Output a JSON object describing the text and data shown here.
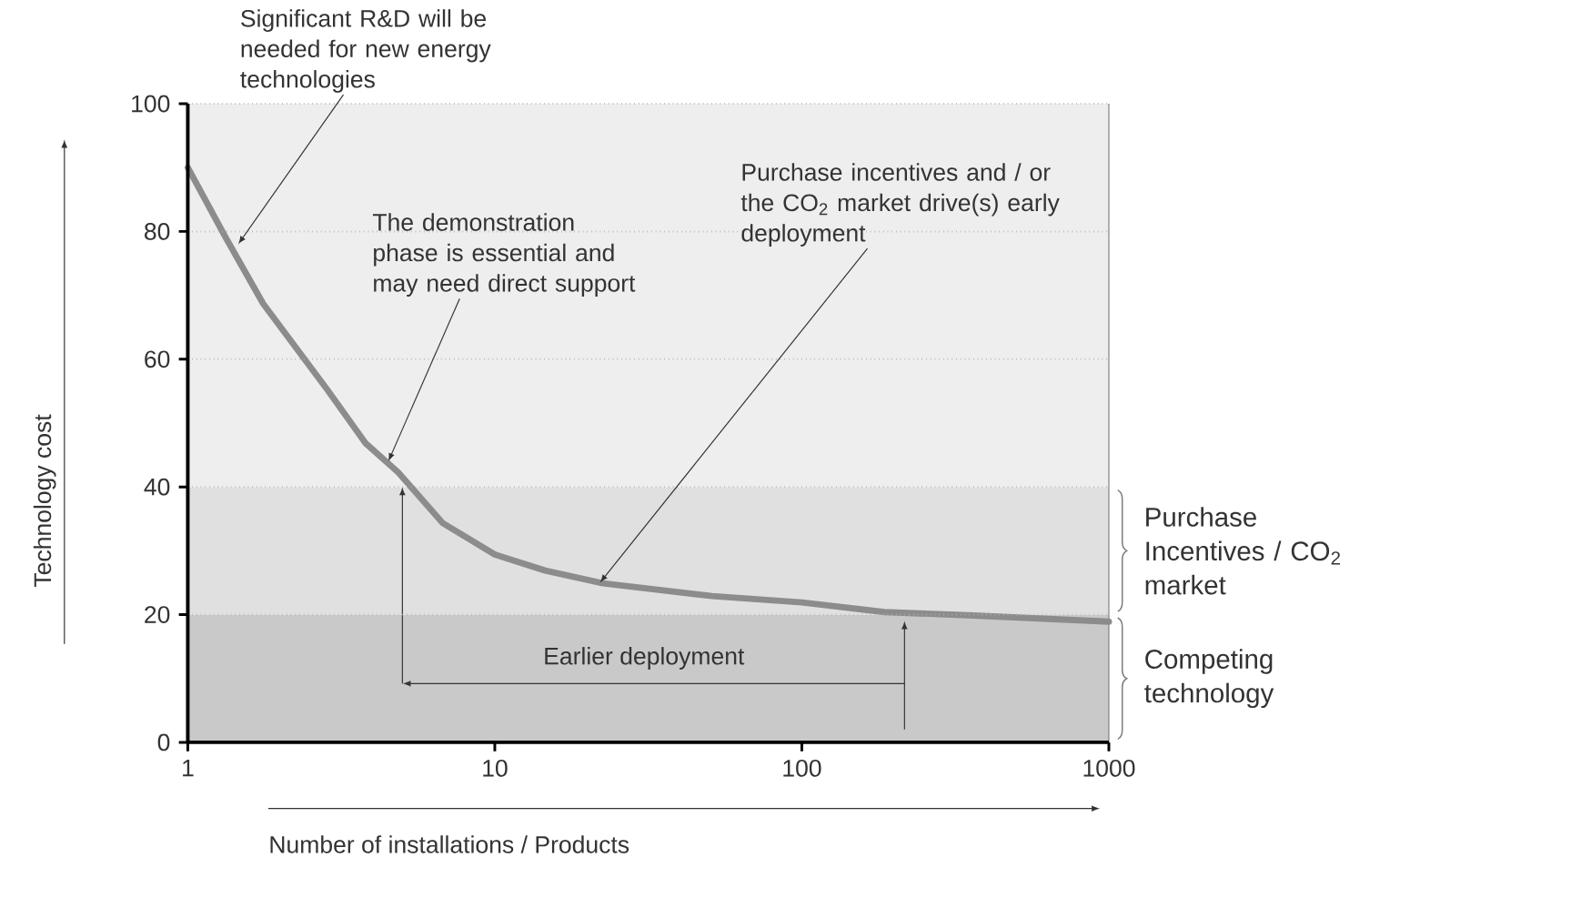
{
  "chart_data": {
    "type": "line",
    "xlabel": "Number of installations / Products",
    "ylabel": "Technology cost",
    "log": "x",
    "xlim": [
      1,
      1000
    ],
    "ylim": [
      0,
      100
    ],
    "xticks": [
      1,
      10,
      100,
      1000
    ],
    "yticks": [
      0,
      20,
      40,
      60,
      80,
      100
    ],
    "grid": "y",
    "series": [
      {
        "color": "#8c8c8c",
        "x": [
          1,
          1.32,
          1.76,
          2.85,
          3.8,
          4.84,
          6.78,
          10,
          14.6,
          22.5,
          51,
          100,
          186,
          348,
          1000
        ],
        "values": [
          90,
          79.3,
          68.7,
          55.2,
          46.8,
          42.3,
          34.3,
          29.4,
          26.9,
          24.9,
          22.9,
          21.9,
          20.4,
          19.9,
          18.9
        ]
      }
    ],
    "bands": [
      {
        "axis": "y",
        "from": 0,
        "to": 20,
        "label": "Competing technology",
        "color": "#c9c9c9"
      },
      {
        "axis": "y",
        "from": 20,
        "to": 40,
        "label": "Purchase Incentives / CO$_{2}$ market",
        "color": "#e0e0e0"
      },
      {
        "axis": "y",
        "from": 40,
        "to": 100,
        "color": "#eeeeee"
      }
    ],
    "annotations": [
      {
        "text": "Significant R&D will be needed for new energy technologies",
        "x": 1.46,
        "y": 78
      },
      {
        "text": "The demonstration phase is essential and may need direct support",
        "x": 4.5,
        "y": 44
      },
      {
        "text": "Purchase incentives and / or the CO$_{2}$ market drive(s) early deployment",
        "x": 22,
        "y": 25
      },
      "Earlier deployment"
    ]
  }
}
